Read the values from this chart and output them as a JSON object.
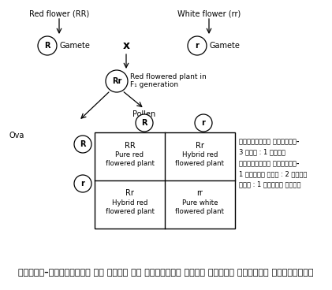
{
  "title": "Red flower (RR)",
  "white_flower_label": "White flower (rr)",
  "gamete_label": "Gamete",
  "gamete_R": "R",
  "gamete_r": "r",
  "cross_symbol": "x",
  "f1_circle_label": "Rr",
  "f1_label_line1": "Red flowered plant in",
  "f1_label_line2": "F₁ generation",
  "pollen_label": "Pollen",
  "ova_label": "Ova",
  "pollen_R": "R",
  "pollen_r": "r",
  "ova_R": "R",
  "ova_r": "r",
  "cell_TL_genotype": "RR",
  "cell_TL_text1": "Pure red",
  "cell_TL_text2": "flowered plant",
  "cell_TR_genotype": "Rr",
  "cell_TR_text1": "Hybrid red",
  "cell_TR_text2": "flowered plant",
  "cell_BL_genotype": "Rr",
  "cell_BL_text1": "Hybrid red",
  "cell_BL_text2": "flowered plant",
  "cell_BR_genotype": "rr",
  "cell_BR_text1": "Pure white",
  "cell_BR_text2": "flowered plant",
  "phenotype_label": "फेनोटाइप अनुपात-",
  "phenotype_ratio": "3 लाल : 1 सफेद",
  "genotype_label": "जीनोटाइप अनुपात-",
  "genotype_ratio1": "1 शुद्ध लाल : 2 संकर",
  "genotype_ratio2": "लाल : 1 शुद्ध सफेद",
  "bottom_caption": "चित्र–पृथक्करण के नियम का पुन्नेट चैकर बोर्ड द्वारा प्रदर्शन",
  "bg_color": "#ffffff",
  "text_color": "#000000",
  "circle_color": "#ffffff",
  "circle_edge": "#000000",
  "box_color": "#ffffff",
  "box_edge": "#000000"
}
